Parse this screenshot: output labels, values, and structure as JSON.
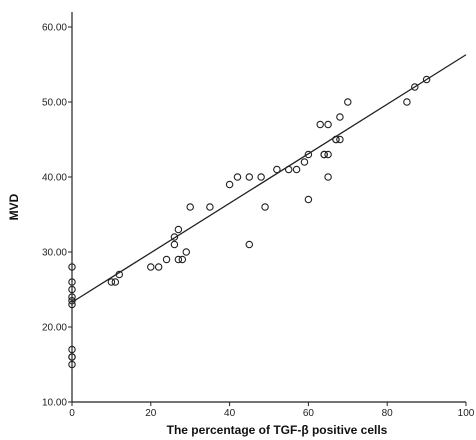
{
  "chart_data": {
    "type": "scatter",
    "title": "",
    "xlabel": "The percentage of TGF-β positive cells",
    "ylabel": "MVD",
    "xlim": [
      0,
      100
    ],
    "ylim": [
      10,
      62
    ],
    "x_ticks": [
      0,
      20,
      40,
      60,
      80,
      100
    ],
    "x_tick_labels": [
      "0",
      "20",
      "40",
      "60",
      "80",
      "100"
    ],
    "y_ticks": [
      10,
      20,
      30,
      40,
      50,
      60
    ],
    "y_tick_labels": [
      "10.00",
      "20.00",
      "30.00",
      "40.00",
      "50.00",
      "60.00"
    ],
    "grid": false,
    "legend": "none",
    "fit_line": {
      "intercept": 23.3,
      "slope": 0.33
    },
    "series": [
      {
        "marker": "open-circle",
        "color": "#222222",
        "x": [
          0,
          0,
          0,
          0,
          0,
          0,
          0,
          0,
          0,
          0,
          10,
          11,
          12,
          20,
          22,
          24,
          26,
          26,
          27,
          27,
          28,
          29,
          30,
          35,
          40,
          42,
          45,
          45,
          48,
          49,
          52,
          55,
          57,
          59,
          60,
          60,
          63,
          64,
          64,
          65,
          65,
          65,
          67,
          67,
          68,
          68,
          70,
          85,
          87,
          90
        ],
        "y": [
          28,
          26,
          25,
          24,
          23.5,
          23,
          17,
          16,
          15,
          16,
          26,
          26,
          27,
          28,
          28,
          29,
          31,
          32,
          33,
          29,
          29,
          30,
          36,
          36,
          39,
          40,
          40,
          31,
          40,
          36,
          41,
          41,
          41,
          42,
          43,
          37,
          47,
          43,
          43,
          47,
          40,
          43,
          45,
          45,
          48,
          45,
          50,
          50,
          52,
          53
        ]
      }
    ]
  }
}
